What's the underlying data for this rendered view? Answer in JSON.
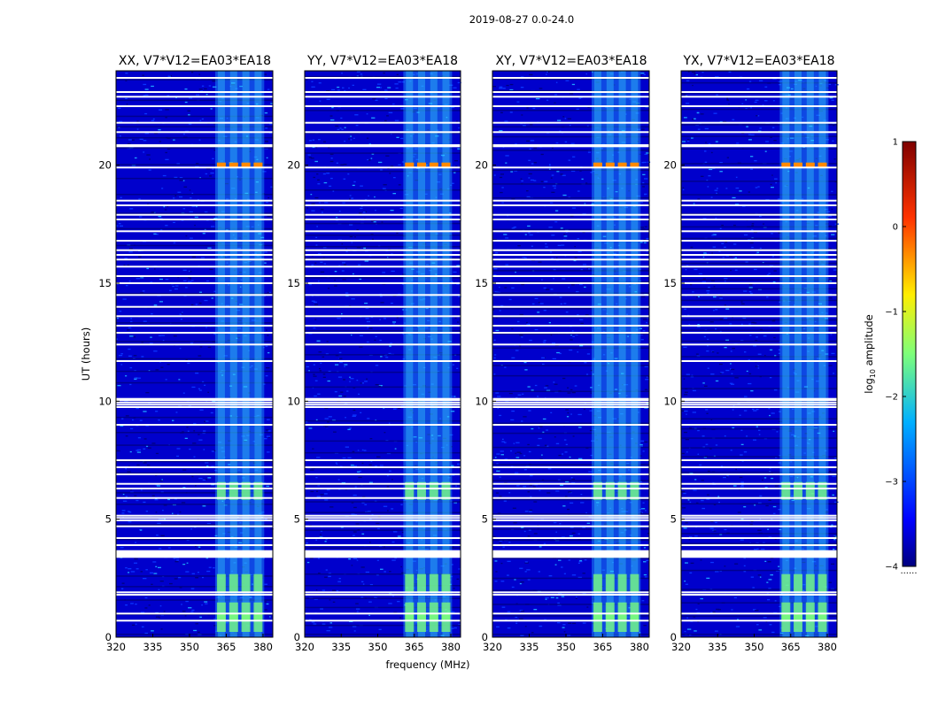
{
  "figure": {
    "suptitle": "2019-08-27 0.0-24.0",
    "xlabel": "frequency (MHz)",
    "ylabel": "UT (hours)"
  },
  "colorbar": {
    "label_prefix": "log",
    "label_sub": "10",
    "label_suffix": " amplitude",
    "ticks": [
      "1",
      "0",
      "−1",
      "−2",
      "−3",
      "−4"
    ],
    "range": [
      -4,
      1
    ],
    "footnote": "......"
  },
  "colors": {
    "background": "#00007f",
    "noise_low": "#0000cc",
    "noise_mid": "#0a35ff",
    "noise_high": "#1fa0ff",
    "band": "#38e0ff",
    "band_hot": "#7cff7a",
    "rfi_peak": "#ff8a00",
    "flagged": "#ffffff"
  },
  "chart_data": {
    "type": "heatmap",
    "x_ticks": [
      "320",
      "335",
      "350",
      "365",
      "380"
    ],
    "x_tick_values": [
      320,
      335,
      350,
      365,
      380
    ],
    "xlim": [
      320,
      384
    ],
    "y_ticks": [
      "0",
      "5",
      "10",
      "15",
      "20"
    ],
    "y_tick_values": [
      0,
      5,
      10,
      15,
      20
    ],
    "ylim": [
      0,
      24
    ],
    "panels": [
      {
        "title": "XX, V7*V12=EA03*EA18"
      },
      {
        "title": "YY, V7*V12=EA03*EA18"
      },
      {
        "title": "XY, V7*V12=EA03*EA18"
      },
      {
        "title": "YX, V7*V12=EA03*EA18"
      }
    ],
    "flagged_hours": [
      0.7,
      1.0,
      1.8,
      1.9,
      3.4,
      3.45,
      3.5,
      3.55,
      3.6,
      3.65,
      3.9,
      4.2,
      4.7,
      4.95,
      5.05,
      5.15,
      5.9,
      6.3,
      6.5,
      6.9,
      7.2,
      7.5,
      9.0,
      9.75,
      9.85,
      9.95,
      10.05,
      10.1,
      11.7,
      12.4,
      12.9,
      13.2,
      13.6,
      14.0,
      14.5,
      15.0,
      15.3,
      15.7,
      16.0,
      16.2,
      16.4,
      16.8,
      17.2,
      17.7,
      17.9,
      18.3,
      18.5,
      19.9,
      20.8,
      20.85,
      21.4,
      21.8,
      22.5,
      22.9,
      23.1,
      23.7
    ],
    "interference_band_mhz": [
      360.5,
      380.5
    ],
    "interference_channels_mhz": [
      363,
      368,
      373,
      378
    ],
    "strong_events": [
      {
        "ut": 20.0,
        "log10_amplitude": -0.1
      },
      {
        "ut": 6.2,
        "log10_amplitude": -1.6
      },
      {
        "ut": 2.3,
        "log10_amplitude": -1.7
      },
      {
        "ut": 1.1,
        "log10_amplitude": -1.8
      },
      {
        "ut": 0.6,
        "log10_amplitude": -2.0
      }
    ],
    "background_log10_amplitude": -3.3
  }
}
